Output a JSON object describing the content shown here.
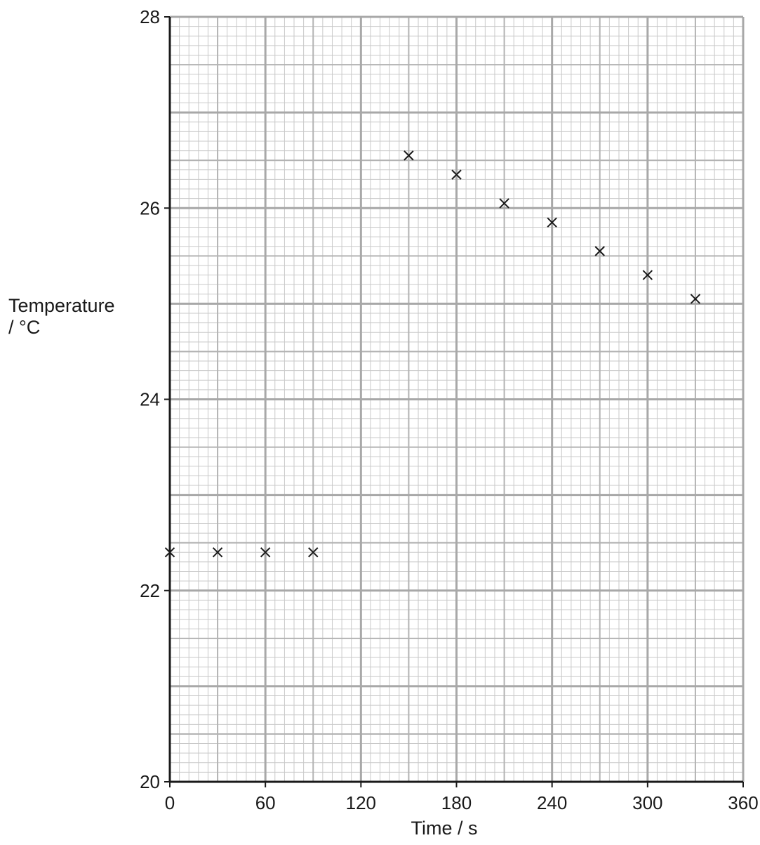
{
  "chart_data": {
    "type": "scatter",
    "title": "",
    "xlabel": "Time / s",
    "ylabel_line1": "Temperature",
    "ylabel_line2": "/ °C",
    "xlim": [
      0,
      360
    ],
    "ylim": [
      20,
      28
    ],
    "x_ticks": [
      0,
      60,
      120,
      180,
      240,
      300,
      360
    ],
    "y_ticks": [
      20,
      22,
      24,
      26,
      28
    ],
    "grid": true,
    "grid_minor_step": {
      "x": 6,
      "y": 0.1
    },
    "grid_mid_step": {
      "x": 30,
      "y": 0.5
    },
    "grid_major_step": {
      "x": 60,
      "y": 1
    },
    "marker": "x",
    "colors": {
      "axis": "#1a1a1a",
      "grid_minor": "#c9c9c9",
      "grid_mid": "#b3b3b3",
      "grid_major": "#a8a8a8",
      "marker": "#1a1a1a"
    },
    "points": [
      {
        "x": 0,
        "y": 22.4
      },
      {
        "x": 30,
        "y": 22.4
      },
      {
        "x": 60,
        "y": 22.4
      },
      {
        "x": 90,
        "y": 22.4
      },
      {
        "x": 150,
        "y": 26.55
      },
      {
        "x": 180,
        "y": 26.35
      },
      {
        "x": 210,
        "y": 26.05
      },
      {
        "x": 240,
        "y": 25.85
      },
      {
        "x": 270,
        "y": 25.55
      },
      {
        "x": 300,
        "y": 25.3
      },
      {
        "x": 330,
        "y": 25.05
      }
    ]
  }
}
